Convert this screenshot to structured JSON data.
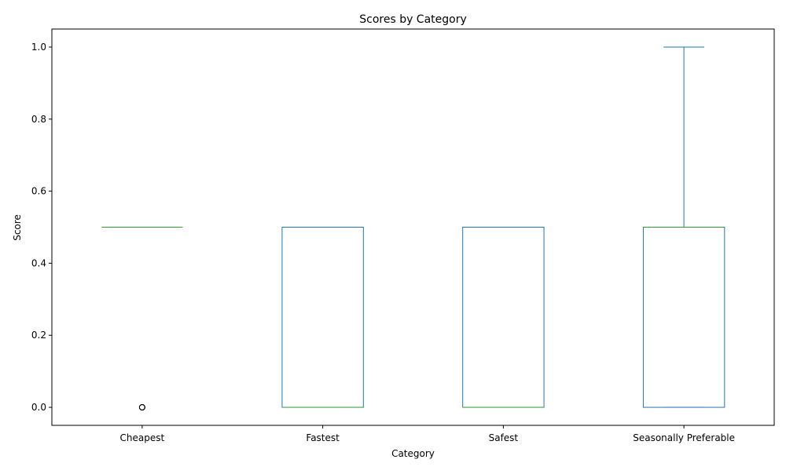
{
  "chart_data": {
    "type": "box",
    "title": "Scores by Category",
    "xlabel": "Category",
    "ylabel": "Score",
    "categories": [
      "Cheapest",
      "Fastest",
      "Safest",
      "Seasonally Preferable"
    ],
    "boxes": [
      {
        "category": "Cheapest",
        "whisker_low": 0.5,
        "q1": 0.5,
        "median": 0.5,
        "q3": 0.5,
        "whisker_high": 0.5,
        "outliers": [
          0.0,
          0.0,
          0.0
        ]
      },
      {
        "category": "Fastest",
        "whisker_low": 0.0,
        "q1": 0.0,
        "median": 0.0,
        "q3": 0.5,
        "whisker_high": 0.5,
        "outliers": []
      },
      {
        "category": "Safest",
        "whisker_low": 0.0,
        "q1": 0.0,
        "median": 0.0,
        "q3": 0.5,
        "whisker_high": 0.5,
        "outliers": []
      },
      {
        "category": "Seasonally Preferable",
        "whisker_low": 0.0,
        "q1": 0.0,
        "median": 0.5,
        "q3": 0.5,
        "whisker_high": 1.0,
        "outliers": []
      }
    ],
    "yticks": [
      "0.0",
      "0.2",
      "0.4",
      "0.6",
      "0.8",
      "1.0"
    ],
    "ylim": [
      -0.05,
      1.05
    ],
    "grid": false,
    "colors": {
      "box": "#1f77b4",
      "median": "#2ca02c",
      "outlier": "#000000"
    }
  }
}
